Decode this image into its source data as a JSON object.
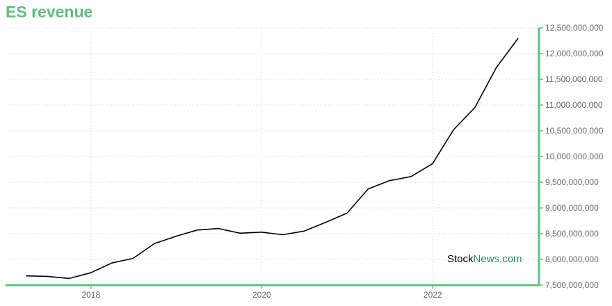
{
  "chart_data": {
    "type": "line",
    "title": "ES revenue",
    "xlabel": "",
    "ylabel": "",
    "x_ticks": [
      "2018",
      "2020",
      "2022"
    ],
    "y_ticks": [
      {
        "value": 7500000000,
        "label": "7,500,000,000"
      },
      {
        "value": 8000000000,
        "label": "8,000,000,000"
      },
      {
        "value": 8500000000,
        "label": "8,500,000,000"
      },
      {
        "value": 9000000000,
        "label": "9,000,000,000"
      },
      {
        "value": 9500000000,
        "label": "9,500,000,000"
      },
      {
        "value": 10000000000,
        "label": "10,000,000,000"
      },
      {
        "value": 10500000000,
        "label": "10,500,000,000"
      },
      {
        "value": 11000000000,
        "label": "11,000,000,000"
      },
      {
        "value": 11500000000,
        "label": "11,500,000,000"
      },
      {
        "value": 12000000000,
        "label": "12,000,000,000"
      },
      {
        "value": 12500000000,
        "label": "12,500,000,000"
      }
    ],
    "xlim": [
      "2017-01-01",
      "2023-03-31"
    ],
    "ylim": [
      7500000000,
      12500000000
    ],
    "grid": true,
    "y_axis_position": "right",
    "series": [
      {
        "color": "#000000",
        "x": [
          "2017-03-31",
          "2017-06-30",
          "2017-09-30",
          "2017-12-31",
          "2018-03-31",
          "2018-06-30",
          "2018-09-30",
          "2018-12-31",
          "2019-03-31",
          "2019-06-30",
          "2019-09-30",
          "2019-12-31",
          "2020-03-31",
          "2020-06-30",
          "2020-09-30",
          "2020-12-31",
          "2021-03-31",
          "2021-06-30",
          "2021-09-30",
          "2021-12-31",
          "2022-03-31",
          "2022-06-30",
          "2022-09-30",
          "2022-12-31"
        ],
        "values": [
          7680000000,
          7670000000,
          7630000000,
          7740000000,
          7930000000,
          8020000000,
          8310000000,
          8450000000,
          8570000000,
          8600000000,
          8510000000,
          8530000000,
          8480000000,
          8550000000,
          8720000000,
          8900000000,
          9370000000,
          9530000000,
          9610000000,
          9860000000,
          10520000000,
          10950000000,
          11730000000,
          12290000000
        ]
      }
    ]
  },
  "watermark": {
    "part1": "Stock",
    "part2": "News.com"
  },
  "colors": {
    "accent": "#5cbf80",
    "line": "#000000",
    "grid": "#b6dccb"
  }
}
